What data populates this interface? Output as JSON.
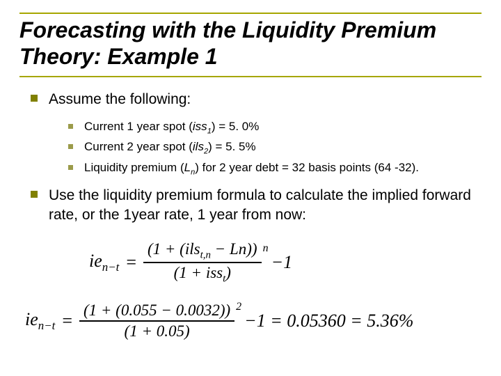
{
  "colors": {
    "title_border": "#a6a600",
    "bullet_l1": "#808000",
    "bullet_l2": "#9b9b4a",
    "text": "#000000"
  },
  "title": "Forecasting with the Liquidity Premium Theory: Example 1",
  "items": [
    {
      "text": "Assume the following:",
      "sub": [
        {
          "html": "Current 1 year spot (<i>iss</i><sub>1</sub>) = 5. 0%"
        },
        {
          "html": "Current 2 year spot (<i>ils</i><sub>2</sub>) = 5. 5%"
        },
        {
          "html": "Liquidity premium (<i>L</i><sub>n</sub>) for 2 year debt = 32 basis points (64 -32)."
        }
      ]
    },
    {
      "text": "Use the liquidity premium formula to calculate the implied forward rate, or the 1year rate, 1 year from now:"
    }
  ],
  "formula1": {
    "lhs": "ie<sub>n−t</sub>",
    "num": "(1 + (<i>ils</i><sub>t,n</sub> − <i>Ln</i>))",
    "den": "(1 + <i>iss</i><sub>t</sub>)",
    "sup": "n",
    "tail": "−1"
  },
  "formula2": {
    "lhs": "ie<sub>n−t</sub>",
    "num": "(1 + (0.055 − 0.0032))",
    "den": "(1 + 0.05)",
    "sup": "2",
    "tail": "−1 = 0.05360 = 5.36%"
  }
}
